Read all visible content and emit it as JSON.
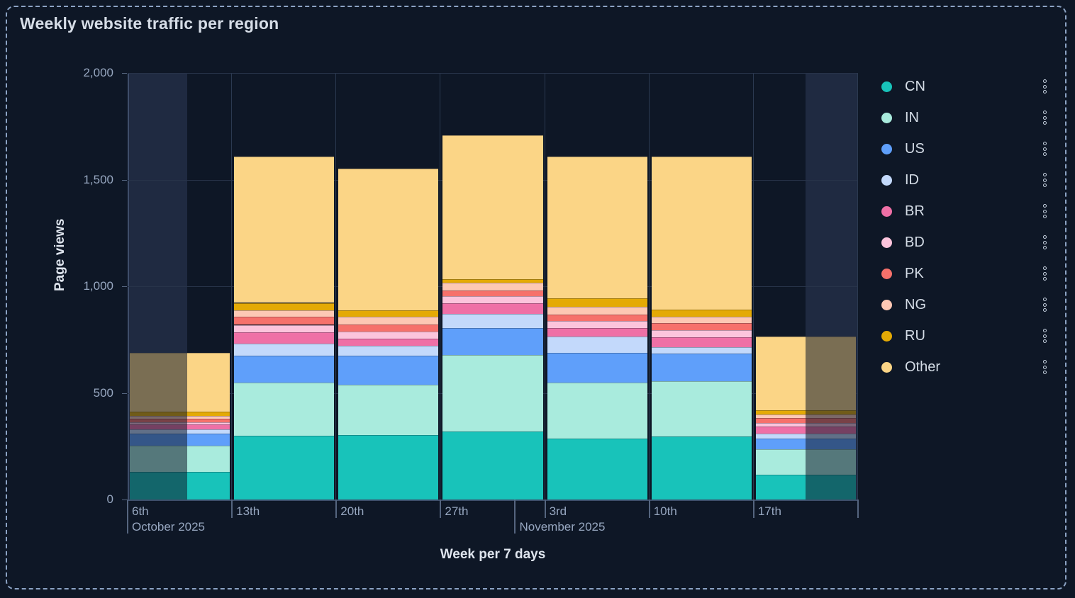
{
  "panel": {
    "title": "Weekly website traffic per region"
  },
  "chart_data": {
    "type": "bar",
    "stacked": true,
    "title": "Weekly website traffic per region",
    "xlabel": "Week per 7 days",
    "ylabel": "Page views",
    "ylim": [
      0,
      2000
    ],
    "grid": true,
    "legend_position": "right",
    "yticks": [
      {
        "value": 0,
        "label": "0"
      },
      {
        "value": 500,
        "label": "500"
      },
      {
        "value": 1000,
        "label": "1,000"
      },
      {
        "value": 1500,
        "label": "1,500"
      },
      {
        "value": 2000,
        "label": "2,000"
      }
    ],
    "categories": [
      "6th",
      "13th",
      "20th",
      "27th",
      "3rd",
      "10th",
      "17th"
    ],
    "month_markers": [
      {
        "label": "October 2025",
        "column_fraction": 0
      },
      {
        "label": "November 2025",
        "column_fraction": 3.714
      }
    ],
    "series": [
      {
        "name": "CN",
        "color": "#18C3BA",
        "values": [
          130,
          300,
          302,
          318,
          285,
          296,
          116
        ]
      },
      {
        "name": "IN",
        "color": "#A9EBDD",
        "values": [
          122,
          248,
          235,
          360,
          263,
          258,
          120
        ]
      },
      {
        "name": "US",
        "color": "#5F9FFA",
        "values": [
          58,
          128,
          138,
          125,
          139,
          129,
          49
        ]
      },
      {
        "name": "ID",
        "color": "#C3D9FB",
        "values": [
          19,
          54,
          45,
          66,
          77,
          31,
          25
        ]
      },
      {
        "name": "BR",
        "color": "#EF70A6",
        "values": [
          22,
          54,
          33,
          50,
          39,
          47,
          33
        ]
      },
      {
        "name": "BD",
        "color": "#FCC4DC",
        "values": [
          12,
          35,
          33,
          33,
          35,
          33,
          17
        ]
      },
      {
        "name": "PK",
        "color": "#F6716B",
        "values": [
          17,
          39,
          34,
          28,
          28,
          33,
          22
        ]
      },
      {
        "name": "NG",
        "color": "#FDC8B4",
        "values": [
          11,
          30,
          38,
          36,
          37,
          31,
          17
        ]
      },
      {
        "name": "RU",
        "color": "#E4AA05",
        "values": [
          21,
          34,
          28,
          18,
          40,
          33,
          21
        ]
      },
      {
        "name": "Other",
        "color": "#FBD586",
        "values": [
          276,
          687,
          664,
          674,
          665,
          717,
          345
        ]
      }
    ],
    "out_of_range_bands": [
      {
        "side": "left",
        "category": "6th",
        "column_index": 0,
        "column_fraction_covered": 0.571
      },
      {
        "side": "right",
        "category": "17th",
        "column_index": 6,
        "column_fraction_covered": 0.5
      }
    ]
  },
  "legend": {
    "items": [
      "CN",
      "IN",
      "US",
      "ID",
      "BR",
      "BD",
      "PK",
      "NG",
      "RU",
      "Other"
    ],
    "menu_icon": "kebab-menu-icon"
  }
}
